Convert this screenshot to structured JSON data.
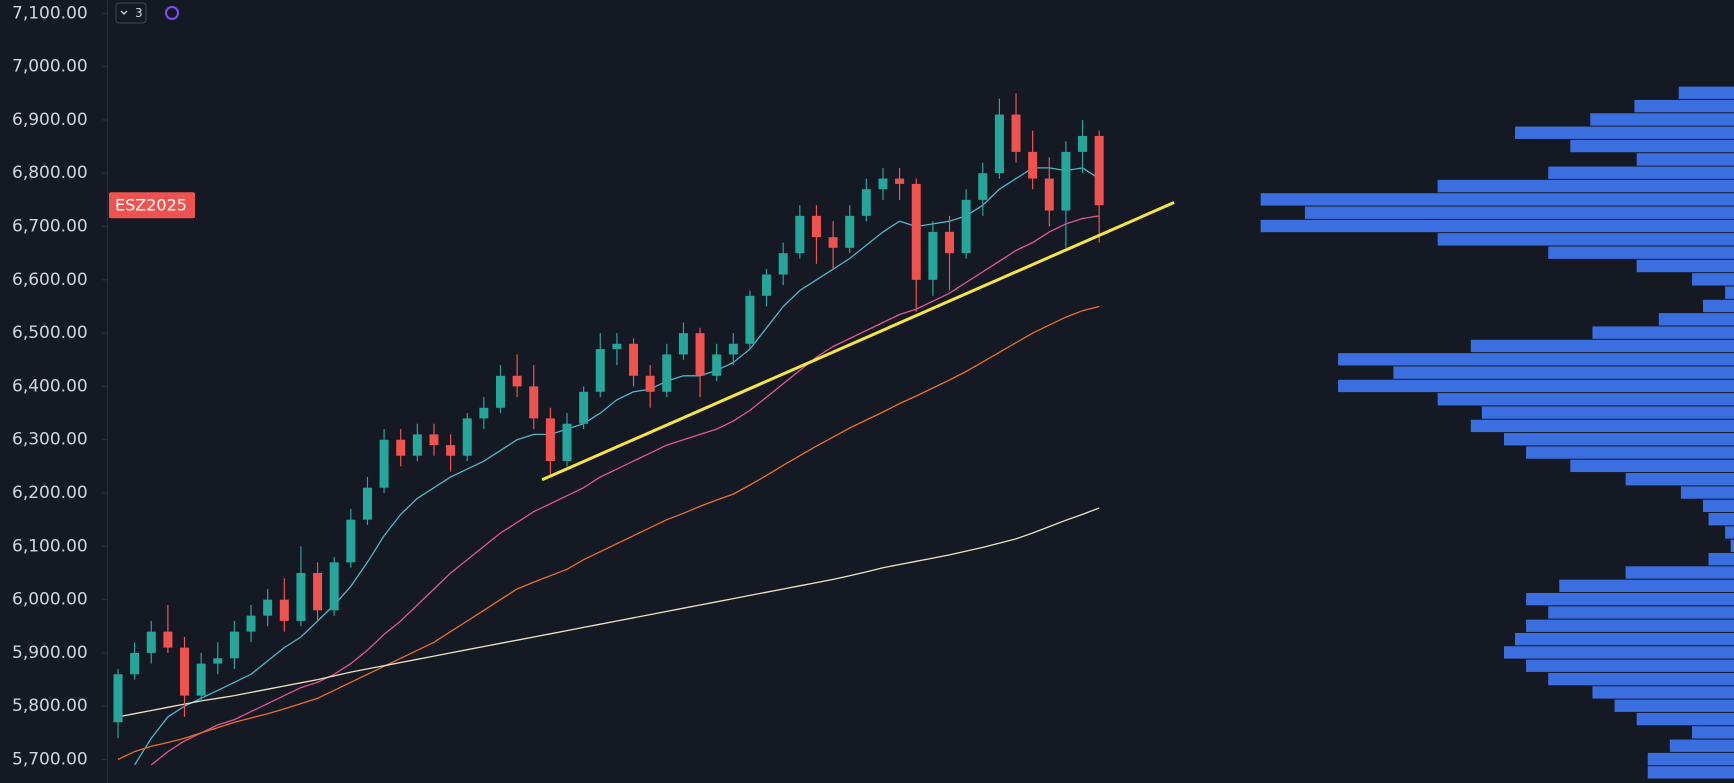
{
  "toolbar": {
    "count": "3"
  },
  "chart_data": {
    "type": "candlestick",
    "symbol": "ESZ2025",
    "up_color": "#26a69a",
    "down_color": "#ef5350",
    "ylim": [
      5656,
      7125
    ],
    "yticks": [
      {
        "value": 5700,
        "label": "5,700.00"
      },
      {
        "value": 5800,
        "label": "5,800.00"
      },
      {
        "value": 5900,
        "label": "5,900.00"
      },
      {
        "value": 6000,
        "label": "6,000.00"
      },
      {
        "value": 6100,
        "label": "6,100.00"
      },
      {
        "value": 6200,
        "label": "6,200.00"
      },
      {
        "value": 6300,
        "label": "6,300.00"
      },
      {
        "value": 6400,
        "label": "6,400.00"
      },
      {
        "value": 6500,
        "label": "6,500.00"
      },
      {
        "value": 6600,
        "label": "6,600.00"
      },
      {
        "value": 6700,
        "label": "6,700.00"
      },
      {
        "value": 6800,
        "label": "6,800.00"
      },
      {
        "value": 6900,
        "label": "6,900.00"
      },
      {
        "value": 7000,
        "label": "7,000.00"
      },
      {
        "value": 7100,
        "label": "7,100.00"
      }
    ],
    "open": [
      5770,
      5860,
      5900,
      5940,
      5910,
      5820,
      5880,
      5890,
      5940,
      5970,
      6000,
      5960,
      6050,
      5980,
      6070,
      6150,
      6210,
      6300,
      6270,
      6310,
      6290,
      6270,
      6340,
      6360,
      6420,
      6400,
      6340,
      6260,
      6330,
      6390,
      6470,
      6480,
      6420,
      6390,
      6460,
      6500,
      6420,
      6460,
      6480,
      6570,
      6610,
      6650,
      6720,
      6680,
      6660,
      6720,
      6770,
      6790,
      6780,
      6600,
      6690,
      6650,
      6750,
      6800,
      6910,
      6840,
      6790,
      6730,
      6840,
      6870
    ],
    "high": [
      5870,
      5920,
      5960,
      5990,
      5930,
      5900,
      5920,
      5960,
      5990,
      6020,
      6040,
      6100,
      6070,
      6080,
      6170,
      6230,
      6320,
      6320,
      6330,
      6330,
      6310,
      6350,
      6380,
      6440,
      6460,
      6440,
      6360,
      6350,
      6400,
      6500,
      6500,
      6490,
      6440,
      6480,
      6520,
      6510,
      6480,
      6500,
      6580,
      6620,
      6670,
      6740,
      6740,
      6710,
      6740,
      6790,
      6810,
      6810,
      6790,
      6710,
      6720,
      6770,
      6820,
      6940,
      6950,
      6880,
      6830,
      6860,
      6900,
      6880
    ],
    "low": [
      5740,
      5850,
      5880,
      5900,
      5780,
      5810,
      5860,
      5870,
      5920,
      5950,
      5940,
      5950,
      5960,
      5970,
      6060,
      6140,
      6200,
      6250,
      6260,
      6270,
      6240,
      6260,
      6320,
      6350,
      6380,
      6320,
      6230,
      6250,
      6320,
      6380,
      6440,
      6400,
      6360,
      6380,
      6450,
      6380,
      6410,
      6440,
      6470,
      6550,
      6590,
      6640,
      6630,
      6620,
      6650,
      6710,
      6750,
      6750,
      6540,
      6570,
      6580,
      6640,
      6720,
      6790,
      6820,
      6770,
      6700,
      6660,
      6800,
      6670
    ],
    "close": [
      5860,
      5900,
      5940,
      5910,
      5820,
      5880,
      5890,
      5940,
      5970,
      6000,
      5960,
      6050,
      5980,
      6070,
      6150,
      6210,
      6300,
      6270,
      6310,
      6290,
      6270,
      6340,
      6360,
      6420,
      6400,
      6340,
      6260,
      6330,
      6390,
      6470,
      6480,
      6420,
      6390,
      6460,
      6500,
      6420,
      6460,
      6480,
      6570,
      6610,
      6650,
      6720,
      6680,
      6660,
      6720,
      6770,
      6790,
      6780,
      6600,
      6690,
      6650,
      6750,
      6800,
      6910,
      6840,
      6790,
      6730,
      6840,
      6870,
      6740
    ],
    "moving_averages": [
      {
        "color": "#4fb6c9",
        "values": [
          null,
          5690,
          5740,
          5780,
          5800,
          5815,
          5830,
          5845,
          5860,
          5885,
          5910,
          5930,
          5960,
          5990,
          6025,
          6070,
          6120,
          6160,
          6190,
          6210,
          6230,
          6245,
          6260,
          6280,
          6300,
          6310,
          6310,
          6320,
          6330,
          6350,
          6375,
          6390,
          6395,
          6410,
          6420,
          6420,
          6430,
          6445,
          6470,
          6510,
          6550,
          6580,
          6600,
          6620,
          6640,
          6665,
          6690,
          6710,
          6700,
          6705,
          6710,
          6720,
          6740,
          6770,
          6790,
          6810,
          6810,
          6805,
          6810,
          6790
        ]
      },
      {
        "color": "#e0578f",
        "values": [
          null,
          null,
          5690,
          5715,
          5735,
          5750,
          5765,
          5775,
          5790,
          5805,
          5820,
          5835,
          5845,
          5860,
          5880,
          5905,
          5935,
          5960,
          5990,
          6020,
          6050,
          6075,
          6100,
          6125,
          6145,
          6165,
          6180,
          6195,
          6210,
          6230,
          6245,
          6260,
          6275,
          6290,
          6300,
          6310,
          6320,
          6335,
          6355,
          6380,
          6405,
          6430,
          6455,
          6475,
          6490,
          6505,
          6520,
          6535,
          6545,
          6560,
          6575,
          6595,
          6615,
          6635,
          6655,
          6670,
          6690,
          6705,
          6715,
          6720
        ]
      },
      {
        "color": "#e8702a",
        "values": [
          5700,
          5715,
          5725,
          5732,
          5740,
          5750,
          5760,
          5770,
          5778,
          5786,
          5795,
          5805,
          5815,
          5830,
          5845,
          5860,
          5875,
          5890,
          5905,
          5920,
          5940,
          5960,
          5980,
          6000,
          6020,
          6033,
          6045,
          6057,
          6075,
          6090,
          6105,
          6120,
          6135,
          6150,
          6162,
          6175,
          6187,
          6198,
          6215,
          6233,
          6252,
          6270,
          6288,
          6305,
          6322,
          6337,
          6352,
          6368,
          6382,
          6397,
          6412,
          6428,
          6446,
          6464,
          6482,
          6500,
          6515,
          6530,
          6542,
          6550
        ]
      },
      {
        "color": "#ece3c4",
        "values": [
          5780,
          5786,
          5792,
          5798,
          5804,
          5810,
          5815,
          5820,
          5826,
          5832,
          5838,
          5844,
          5850,
          5857,
          5864,
          5870,
          5876,
          5882,
          5888,
          5894,
          5900,
          5906,
          5912,
          5918,
          5924,
          5930,
          5936,
          5942,
          5948,
          5954,
          5960,
          5966,
          5972,
          5978,
          5984,
          5990,
          5996,
          6002,
          6008,
          6014,
          6020,
          6026,
          6032,
          6038,
          6045,
          6052,
          6060,
          6066,
          6072,
          6078,
          6084,
          6091,
          6098,
          6106,
          6114,
          6125,
          6137,
          6149,
          6160,
          6172
        ]
      }
    ],
    "trendline": {
      "color": "#f5e642",
      "x": [
        25.5,
        63.5
      ],
      "y": [
        6225,
        6745
      ]
    },
    "volume_profile": {
      "color": "#3b6fe0",
      "xlim": [
        0,
        1568
      ],
      "bins": [
        5662.5,
        5687.5,
        5712.5,
        5737.5,
        5762.5,
        5787.5,
        5812.5,
        5837.5,
        5862.5,
        5887.5,
        5912.5,
        5937.5,
        5962.5,
        5987.5,
        6012.5,
        6037.5,
        6062.5,
        6087.5,
        6112.5,
        6137.5,
        6162.5,
        6187.5,
        6212.5,
        6237.5,
        6262.5,
        6287.5,
        6312.5,
        6337.5,
        6362.5,
        6387.5,
        6412.5,
        6437.5,
        6462.5,
        6487.5,
        6512.5,
        6537.5,
        6562.5,
        6587.5,
        6612.5,
        6637.5,
        6662.5,
        6687.5,
        6712.5,
        6737.5,
        6762.5,
        6787.5,
        6812.5,
        6837.5,
        6862.5,
        6887.5,
        6912.5,
        6937.5,
        6962.5
      ],
      "counts": [
        78,
        78,
        58,
        38,
        88,
        108,
        128,
        168,
        188,
        208,
        198,
        188,
        168,
        188,
        158,
        98,
        23,
        3,
        8,
        23,
        28,
        48,
        98,
        148,
        188,
        208,
        238,
        228,
        268,
        358,
        308,
        358,
        238,
        128,
        68,
        28,
        8,
        38,
        88,
        168,
        268,
        428,
        388,
        428,
        268,
        168,
        88,
        148,
        198,
        130,
        90,
        50
      ]
    }
  }
}
